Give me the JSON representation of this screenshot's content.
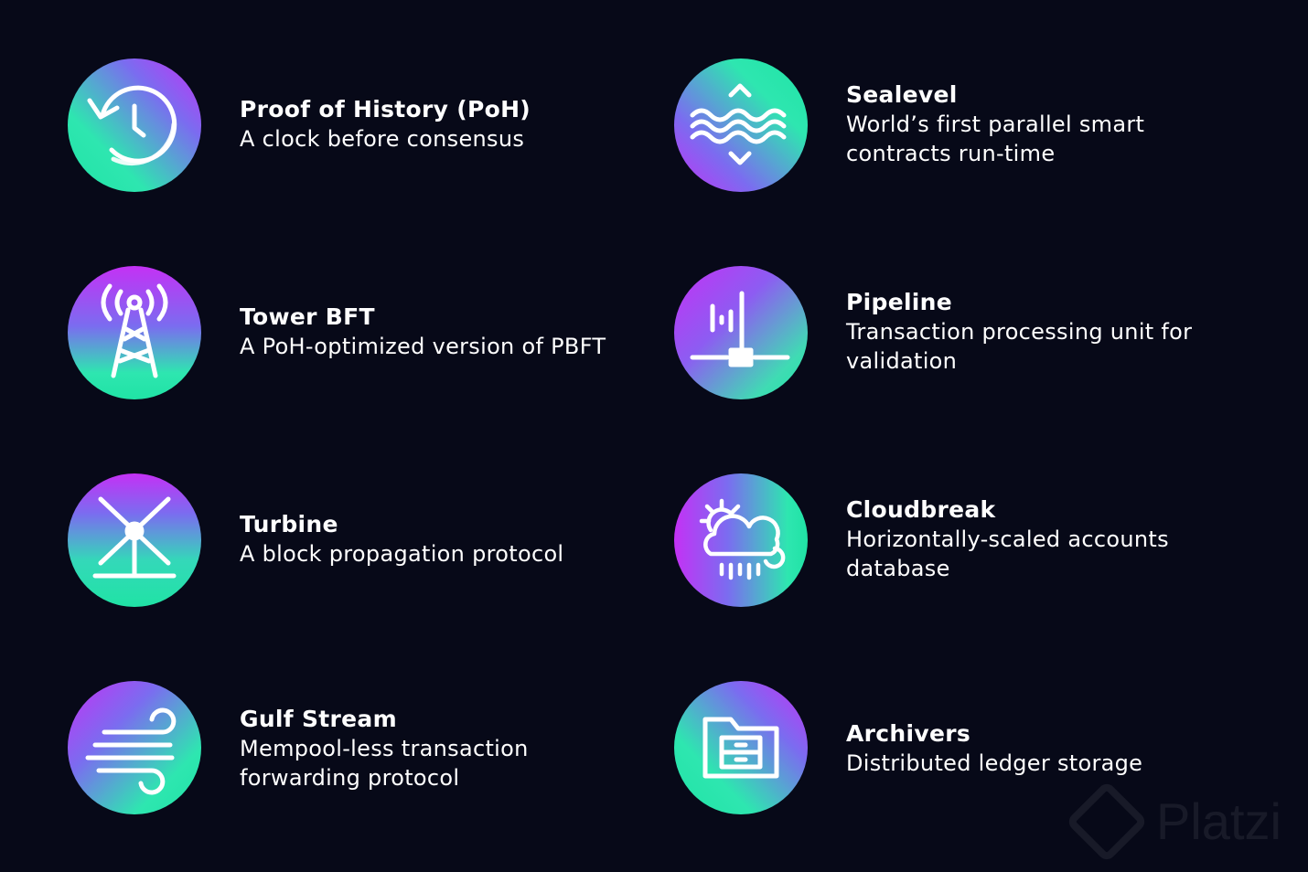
{
  "features": [
    {
      "title": "Proof of History (PoH)",
      "desc": [
        "A clock before consensus"
      ],
      "icon": "clock-history-icon"
    },
    {
      "title": "Sealevel",
      "desc": [
        "World’s first parallel smart",
        "contracts run-time"
      ],
      "icon": "waves-icon"
    },
    {
      "title": "Tower BFT",
      "desc": [
        "A PoH-optimized version of PBFT"
      ],
      "icon": "radio-tower-icon"
    },
    {
      "title": "Pipeline",
      "desc": [
        "Transaction processing unit for",
        "validation"
      ],
      "icon": "pipeline-icon"
    },
    {
      "title": "Turbine",
      "desc": [
        "A block propagation protocol"
      ],
      "icon": "turbine-icon"
    },
    {
      "title": "Cloudbreak",
      "desc": [
        "Horizontally-scaled accounts",
        "database"
      ],
      "icon": "cloud-sun-rain-icon"
    },
    {
      "title": "Gulf Stream",
      "desc": [
        "Mempool-less transaction",
        "forwarding protocol"
      ],
      "icon": "wind-icon"
    },
    {
      "title": "Archivers",
      "desc": [
        "Distributed ledger storage"
      ],
      "icon": "folder-archive-icon"
    }
  ],
  "watermark": {
    "text": "Platzi"
  },
  "colors": {
    "background": "#070918",
    "green": "#20e3a5",
    "purple": "#c431f5",
    "violet": "#7b6cf0"
  }
}
